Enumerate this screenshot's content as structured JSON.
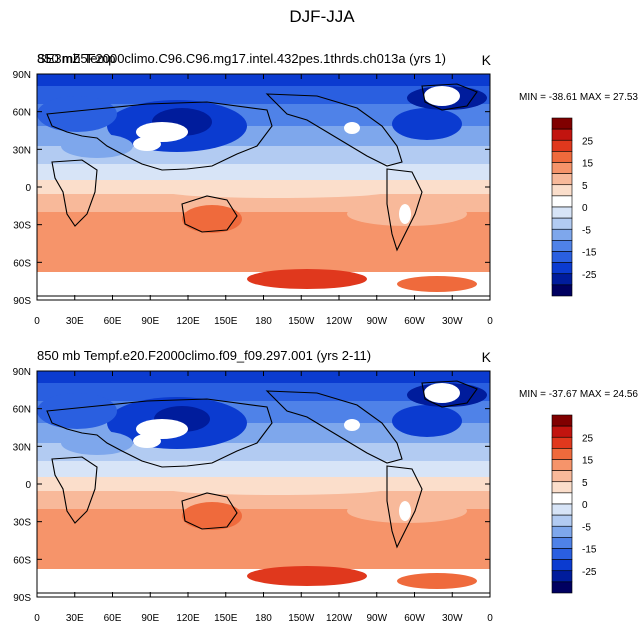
{
  "figure_title": "DJF-JJA",
  "chart_data": [
    {
      "type": "heatmap",
      "title": "850 mb Temp",
      "title_overlap": "SE3mZ5F2000climo.C96.C96.mg17.intel.432pes.1thrds.ch013a (yrs 1)",
      "units": "K",
      "min_max_text": "MIN = -38.61 MAX =  27.53",
      "min": -38.61,
      "max": 27.53,
      "x_ticks": [
        "0",
        "30E",
        "60E",
        "90E",
        "120E",
        "150E",
        "180",
        "150W",
        "120W",
        "90W",
        "60W",
        "30W",
        "0"
      ],
      "y_ticks": [
        "90N",
        "60N",
        "30N",
        "0",
        "30S",
        "60S",
        "90S"
      ],
      "xlim": [
        0,
        360
      ],
      "ylim": [
        -90,
        90
      ],
      "colorbar_labels": [
        "25",
        "15",
        "5",
        "0",
        "-5",
        "-15",
        "-25"
      ],
      "colorbar_colors": [
        "#800000",
        "#c2140f",
        "#e0381d",
        "#ef6a3c",
        "#f6946a",
        "#f8b99a",
        "#fbdecb",
        "#ffffff",
        "#d7e4f7",
        "#b2cbf2",
        "#7ea7ec",
        "#4f82e8",
        "#2a5fe0",
        "#0b3bd0",
        "#001c9c",
        "#000060"
      ]
    },
    {
      "type": "heatmap",
      "title": "850 mb Tempf.e20.F2000climo.f09_f09.297.001 (yrs 2-11)",
      "units": "K",
      "min_max_text": "MIN = -37.67 MAX =  24.56",
      "min": -37.67,
      "max": 24.56,
      "x_ticks": [
        "0",
        "30E",
        "60E",
        "90E",
        "120E",
        "150E",
        "180",
        "150W",
        "120W",
        "90W",
        "60W",
        "30W",
        "0"
      ],
      "y_ticks": [
        "90N",
        "60N",
        "30N",
        "0",
        "30S",
        "60S",
        "90S"
      ],
      "xlim": [
        0,
        360
      ],
      "ylim": [
        -90,
        90
      ],
      "colorbar_labels": [
        "25",
        "15",
        "5",
        "0",
        "-5",
        "-15",
        "-25"
      ],
      "colorbar_colors": [
        "#800000",
        "#c2140f",
        "#e0381d",
        "#ef6a3c",
        "#f6946a",
        "#f8b99a",
        "#fbdecb",
        "#ffffff",
        "#d7e4f7",
        "#b2cbf2",
        "#7ea7ec",
        "#4f82e8",
        "#2a5fe0",
        "#0b3bd0",
        "#001c9c",
        "#000060"
      ]
    }
  ]
}
